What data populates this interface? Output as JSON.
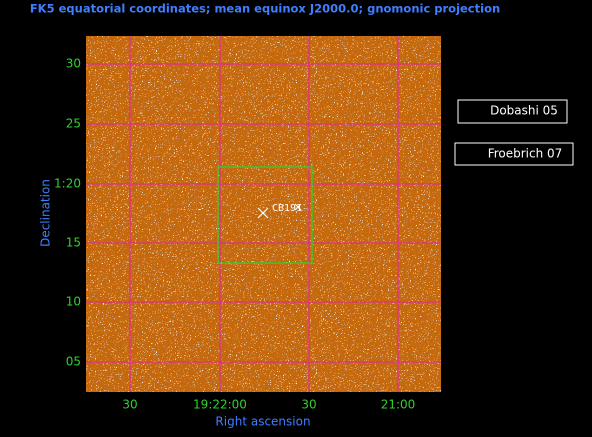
{
  "title": "FK5 equatorial coordinates; mean equinox J2000.0; gnomonic projection",
  "x_axis": {
    "label": "Right ascension",
    "ticks": [
      "30",
      "19:22:00",
      "30",
      "21:00"
    ]
  },
  "y_axis": {
    "label": "Declination",
    "ticks": [
      "30",
      "25",
      "1:20",
      "15",
      "10",
      "05"
    ]
  },
  "object": {
    "label": "CB191"
  },
  "buttons": [
    "Dobashi 05",
    "Froebrich 07"
  ]
}
